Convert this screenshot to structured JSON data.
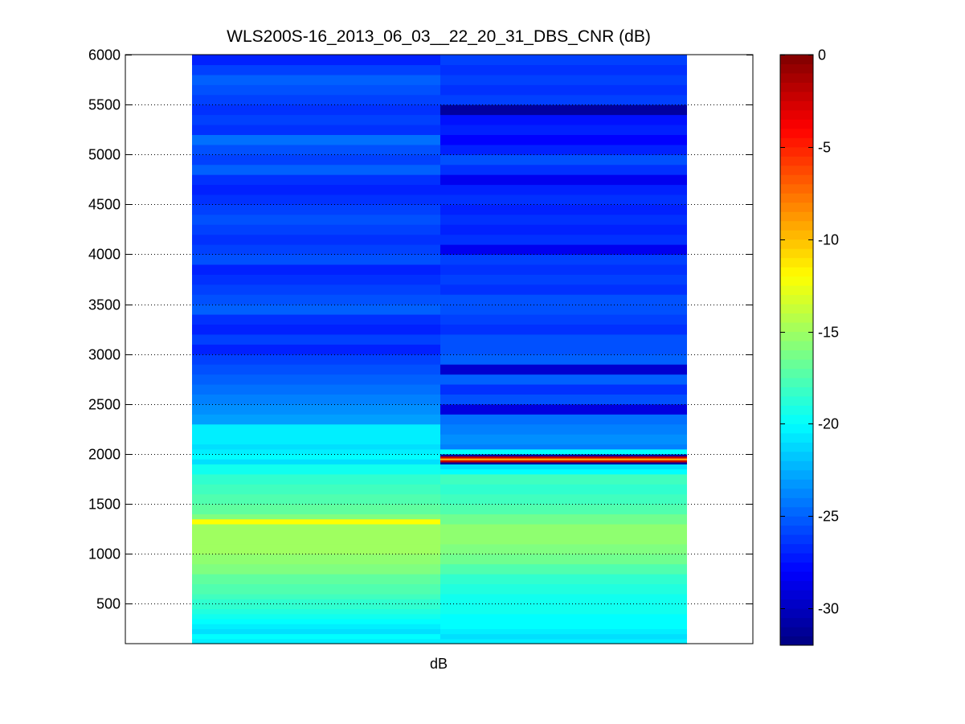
{
  "chart_data": {
    "type": "heatmap",
    "title": "WLS200S-16_2013_06_03__22_20_31_DBS_CNR (dB)",
    "xlabel": "dB",
    "ylabel": "",
    "ylim": [
      100,
      6000
    ],
    "yticks": [
      500,
      1000,
      1500,
      2000,
      2500,
      3000,
      3500,
      4000,
      4500,
      5000,
      5500,
      6000
    ],
    "grid": true,
    "colormap": "jet",
    "colorbar": {
      "clim": [
        -32,
        0
      ],
      "ticks": [
        0,
        -5,
        -10,
        -15,
        -20,
        -25,
        -30
      ]
    },
    "columns": [
      {
        "cells": [
          [
            100,
            150,
            -20.5
          ],
          [
            150,
            200,
            -20
          ],
          [
            200,
            250,
            -21
          ],
          [
            250,
            300,
            -20.5
          ],
          [
            300,
            350,
            -20
          ],
          [
            350,
            400,
            -19.5
          ],
          [
            400,
            450,
            -19
          ],
          [
            450,
            500,
            -18.5
          ],
          [
            500,
            550,
            -18.5
          ],
          [
            550,
            600,
            -18
          ],
          [
            600,
            700,
            -17.5
          ],
          [
            700,
            800,
            -17
          ],
          [
            800,
            900,
            -16
          ],
          [
            900,
            1000,
            -15.5
          ],
          [
            1000,
            1100,
            -15
          ],
          [
            1100,
            1200,
            -15
          ],
          [
            1200,
            1300,
            -15
          ],
          [
            1300,
            1350,
            -12
          ],
          [
            1350,
            1400,
            -16
          ],
          [
            1400,
            1500,
            -17
          ],
          [
            1500,
            1600,
            -17.5
          ],
          [
            1600,
            1700,
            -18
          ],
          [
            1700,
            1800,
            -18.5
          ],
          [
            1800,
            1900,
            -19.5
          ],
          [
            1900,
            1950,
            -21
          ],
          [
            1950,
            2000,
            -20
          ],
          [
            2000,
            2050,
            -20.5
          ],
          [
            2050,
            2100,
            -21
          ],
          [
            2100,
            2200,
            -20.5
          ],
          [
            2200,
            2300,
            -20.5
          ],
          [
            2300,
            2400,
            -23
          ],
          [
            2400,
            2500,
            -23.5
          ],
          [
            2500,
            2600,
            -24
          ],
          [
            2600,
            2700,
            -24.5
          ],
          [
            2700,
            2800,
            -25
          ],
          [
            2800,
            2900,
            -25.5
          ],
          [
            2900,
            3000,
            -26
          ],
          [
            3000,
            3100,
            -27
          ],
          [
            3100,
            3200,
            -26
          ],
          [
            3200,
            3300,
            -27
          ],
          [
            3300,
            3400,
            -26.5
          ],
          [
            3400,
            3500,
            -25
          ],
          [
            3500,
            3600,
            -25.5
          ],
          [
            3600,
            3700,
            -26
          ],
          [
            3700,
            3800,
            -26.5
          ],
          [
            3800,
            3900,
            -27
          ],
          [
            3900,
            4000,
            -25.5
          ],
          [
            4000,
            4100,
            -26
          ],
          [
            4100,
            4200,
            -26.5
          ],
          [
            4200,
            4300,
            -26
          ],
          [
            4300,
            4400,
            -25.5
          ],
          [
            4400,
            4500,
            -26
          ],
          [
            4500,
            4600,
            -26.5
          ],
          [
            4600,
            4700,
            -27
          ],
          [
            4700,
            4800,
            -26.5
          ],
          [
            4800,
            4900,
            -25
          ],
          [
            4900,
            5000,
            -26
          ],
          [
            5000,
            5100,
            -25.5
          ],
          [
            5100,
            5200,
            -24.5
          ],
          [
            5200,
            5300,
            -26.5
          ],
          [
            5300,
            5400,
            -26
          ],
          [
            5400,
            5500,
            -26.5
          ],
          [
            5500,
            5600,
            -26
          ],
          [
            5600,
            5700,
            -25.5
          ],
          [
            5700,
            5800,
            -25
          ],
          [
            5800,
            5900,
            -26
          ],
          [
            5900,
            6000,
            -27
          ]
        ]
      },
      {
        "cells": [
          [
            100,
            150,
            -20.5
          ],
          [
            150,
            200,
            -21
          ],
          [
            200,
            250,
            -20.5
          ],
          [
            250,
            300,
            -20
          ],
          [
            300,
            400,
            -20
          ],
          [
            400,
            500,
            -19.5
          ],
          [
            500,
            600,
            -19.5
          ],
          [
            600,
            700,
            -19
          ],
          [
            700,
            800,
            -18.5
          ],
          [
            800,
            900,
            -17.5
          ],
          [
            900,
            1000,
            -16.5
          ],
          [
            1000,
            1100,
            -16
          ],
          [
            1100,
            1200,
            -15.5
          ],
          [
            1200,
            1300,
            -15.5
          ],
          [
            1300,
            1400,
            -16.5
          ],
          [
            1400,
            1500,
            -17.5
          ],
          [
            1500,
            1600,
            -18
          ],
          [
            1600,
            1700,
            -18.5
          ],
          [
            1700,
            1800,
            -18
          ],
          [
            1800,
            1850,
            -20
          ],
          [
            1850,
            1900,
            -21
          ],
          [
            1900,
            1920,
            -31
          ],
          [
            1920,
            1940,
            -2
          ],
          [
            1940,
            1960,
            -9
          ],
          [
            1960,
            1980,
            -2
          ],
          [
            1980,
            2000,
            -31
          ],
          [
            2000,
            2050,
            -20
          ],
          [
            2050,
            2100,
            -24
          ],
          [
            2100,
            2200,
            -23.5
          ],
          [
            2200,
            2300,
            -24
          ],
          [
            2300,
            2400,
            -24.5
          ],
          [
            2400,
            2500,
            -29
          ],
          [
            2500,
            2600,
            -25.5
          ],
          [
            2600,
            2700,
            -26.5
          ],
          [
            2700,
            2800,
            -25
          ],
          [
            2800,
            2900,
            -29.5
          ],
          [
            2900,
            3000,
            -25
          ],
          [
            3000,
            3100,
            -25.5
          ],
          [
            3100,
            3200,
            -25.5
          ],
          [
            3200,
            3300,
            -26.5
          ],
          [
            3300,
            3400,
            -26
          ],
          [
            3400,
            3500,
            -25.5
          ],
          [
            3500,
            3600,
            -25.5
          ],
          [
            3600,
            3700,
            -26.5
          ],
          [
            3700,
            3800,
            -26
          ],
          [
            3800,
            3900,
            -26.5
          ],
          [
            3900,
            4000,
            -26
          ],
          [
            4000,
            4100,
            -28.5
          ],
          [
            4100,
            4200,
            -26.5
          ],
          [
            4200,
            4300,
            -27
          ],
          [
            4300,
            4400,
            -26.5
          ],
          [
            4400,
            4500,
            -27
          ],
          [
            4500,
            4600,
            -26.5
          ],
          [
            4600,
            4700,
            -27
          ],
          [
            4700,
            4800,
            -28.5
          ],
          [
            4800,
            4900,
            -26.5
          ],
          [
            4900,
            5000,
            -25.5
          ],
          [
            5000,
            5100,
            -27
          ],
          [
            5100,
            5200,
            -28
          ],
          [
            5200,
            5300,
            -27
          ],
          [
            5300,
            5400,
            -27.5
          ],
          [
            5400,
            5500,
            -31
          ],
          [
            5500,
            5600,
            -26
          ],
          [
            5600,
            5700,
            -26.5
          ],
          [
            5700,
            5800,
            -26
          ],
          [
            5800,
            5900,
            -26.5
          ],
          [
            5900,
            6000,
            -26
          ]
        ]
      }
    ]
  }
}
